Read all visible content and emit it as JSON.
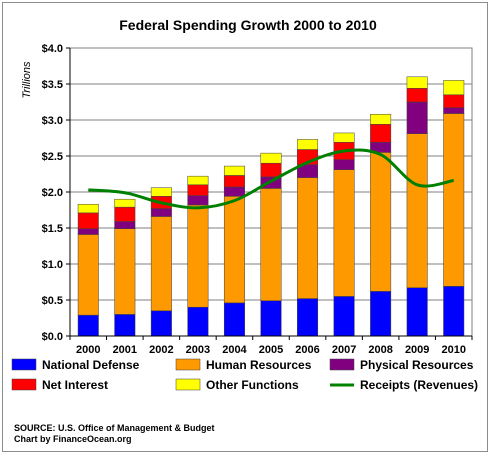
{
  "chart_data": {
    "type": "bar",
    "stacked": true,
    "title": "Federal Spending Growth 2000 to 2010",
    "ylabel": "Trillions",
    "xlabel": "",
    "ylim": [
      0,
      4
    ],
    "yticks": [
      0,
      0.5,
      1.0,
      1.5,
      2.0,
      2.5,
      3.0,
      3.5,
      4.0
    ],
    "ytick_labels": [
      "$0.0",
      "$0.5",
      "$1.0",
      "$1.5",
      "$2.0",
      "$2.5",
      "$3.0",
      "$3.5",
      "$4.0"
    ],
    "grid": true,
    "legend_position": "bottom",
    "categories": [
      "2000",
      "2001",
      "2002",
      "2003",
      "2004",
      "2005",
      "2006",
      "2007",
      "2008",
      "2009",
      "2010"
    ],
    "series": [
      {
        "name": "National Defense",
        "color": "#0000ff",
        "values": [
          0.29,
          0.3,
          0.35,
          0.4,
          0.46,
          0.49,
          0.52,
          0.55,
          0.62,
          0.67,
          0.69
        ]
      },
      {
        "name": "Human Resources",
        "color": "#ff9900",
        "values": [
          1.12,
          1.19,
          1.31,
          1.42,
          1.48,
          1.56,
          1.68,
          1.76,
          1.93,
          2.14,
          2.4
        ]
      },
      {
        "name": "Physical Resources",
        "color": "#800080",
        "values": [
          0.08,
          0.1,
          0.11,
          0.13,
          0.13,
          0.16,
          0.18,
          0.14,
          0.14,
          0.44,
          0.08
        ]
      },
      {
        "name": "Net Interest",
        "color": "#ff0000",
        "values": [
          0.22,
          0.2,
          0.17,
          0.15,
          0.16,
          0.19,
          0.21,
          0.24,
          0.25,
          0.19,
          0.18
        ]
      },
      {
        "name": "Other Functions",
        "color": "#ffff00",
        "values": [
          0.12,
          0.11,
          0.12,
          0.12,
          0.13,
          0.14,
          0.14,
          0.13,
          0.14,
          0.16,
          0.2
        ]
      }
    ],
    "line_series": {
      "name": "Receipts (Revenues)",
      "color": "#008000",
      "values": [
        2.03,
        1.99,
        1.85,
        1.78,
        1.88,
        2.15,
        2.41,
        2.57,
        2.52,
        2.1,
        2.16
      ]
    }
  },
  "footer": {
    "source": "SOURCE: U.S. Office of Management & Budget",
    "credit": "Chart by FinanceOcean.org"
  }
}
